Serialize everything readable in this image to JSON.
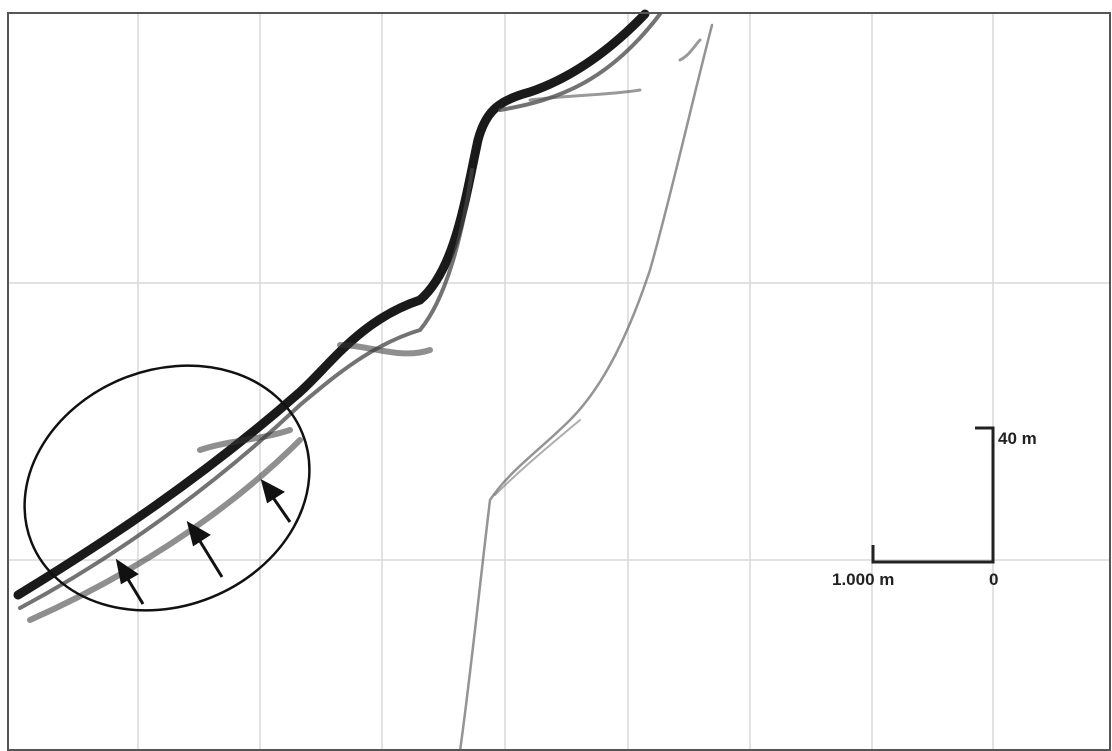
{
  "scale_bar": {
    "vertical_label": "40 m",
    "horizontal_label": "1.000 m",
    "origin_label": "0"
  }
}
